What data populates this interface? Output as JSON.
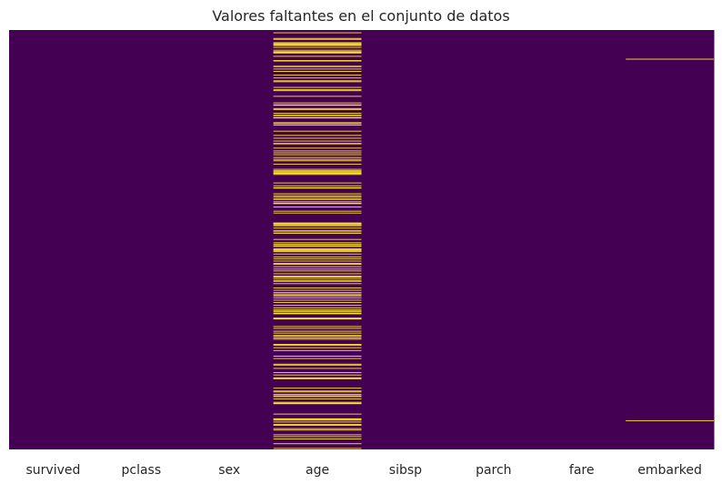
{
  "chart_data": {
    "type": "heatmap",
    "title": "Valores faltantes en el conjunto de datos",
    "columns": [
      "survived",
      "pclass",
      "sex",
      "age",
      "sibsp",
      "parch",
      "fare",
      "embarked"
    ],
    "n_rows": 891,
    "value_meaning": {
      "0": "present",
      "1": "missing"
    },
    "colors": {
      "present": "#440154",
      "missing": "#fde725"
    },
    "colorbar": false,
    "ylabels_visible": false,
    "missing_rows": {
      "survived": [],
      "pclass": [],
      "sex": [],
      "age": [
        5,
        17,
        19,
        26,
        28,
        29,
        31,
        32,
        36,
        42,
        45,
        46,
        47,
        48,
        55,
        64,
        65,
        76,
        77,
        82,
        87,
        95,
        101,
        107,
        109,
        121,
        126,
        128,
        140,
        154,
        158,
        159,
        166,
        168,
        176,
        180,
        181,
        185,
        186,
        196,
        198,
        201,
        214,
        223,
        229,
        235,
        240,
        241,
        250,
        256,
        260,
        264,
        270,
        274,
        277,
        284,
        295,
        298,
        300,
        301,
        303,
        304,
        306,
        324,
        330,
        334,
        335,
        347,
        351,
        354,
        358,
        359,
        364,
        367,
        368,
        375,
        384,
        388,
        409,
        410,
        411,
        413,
        415,
        420,
        425,
        428,
        431,
        444,
        451,
        454,
        457,
        459,
        464,
        466,
        468,
        470,
        475,
        481,
        485,
        490,
        495,
        497,
        502,
        507,
        511,
        517,
        522,
        524,
        527,
        531,
        533,
        538,
        547,
        552,
        557,
        560,
        563,
        564,
        568,
        573,
        578,
        584,
        589,
        593,
        596,
        598,
        601,
        602,
        611,
        612,
        613,
        629,
        633,
        639,
        643,
        648,
        650,
        653,
        656,
        667,
        669,
        674,
        680,
        692,
        697,
        709,
        711,
        718,
        727,
        732,
        738,
        739,
        740,
        760,
        766,
        768,
        773,
        776,
        778,
        783,
        790,
        792,
        793,
        815,
        825,
        826,
        828,
        832,
        837,
        839,
        846,
        849,
        859,
        863,
        868,
        878,
        888
      ],
      "sibsp": [],
      "parch": [],
      "fare": [],
      "embarked": [
        61,
        829
      ]
    }
  }
}
